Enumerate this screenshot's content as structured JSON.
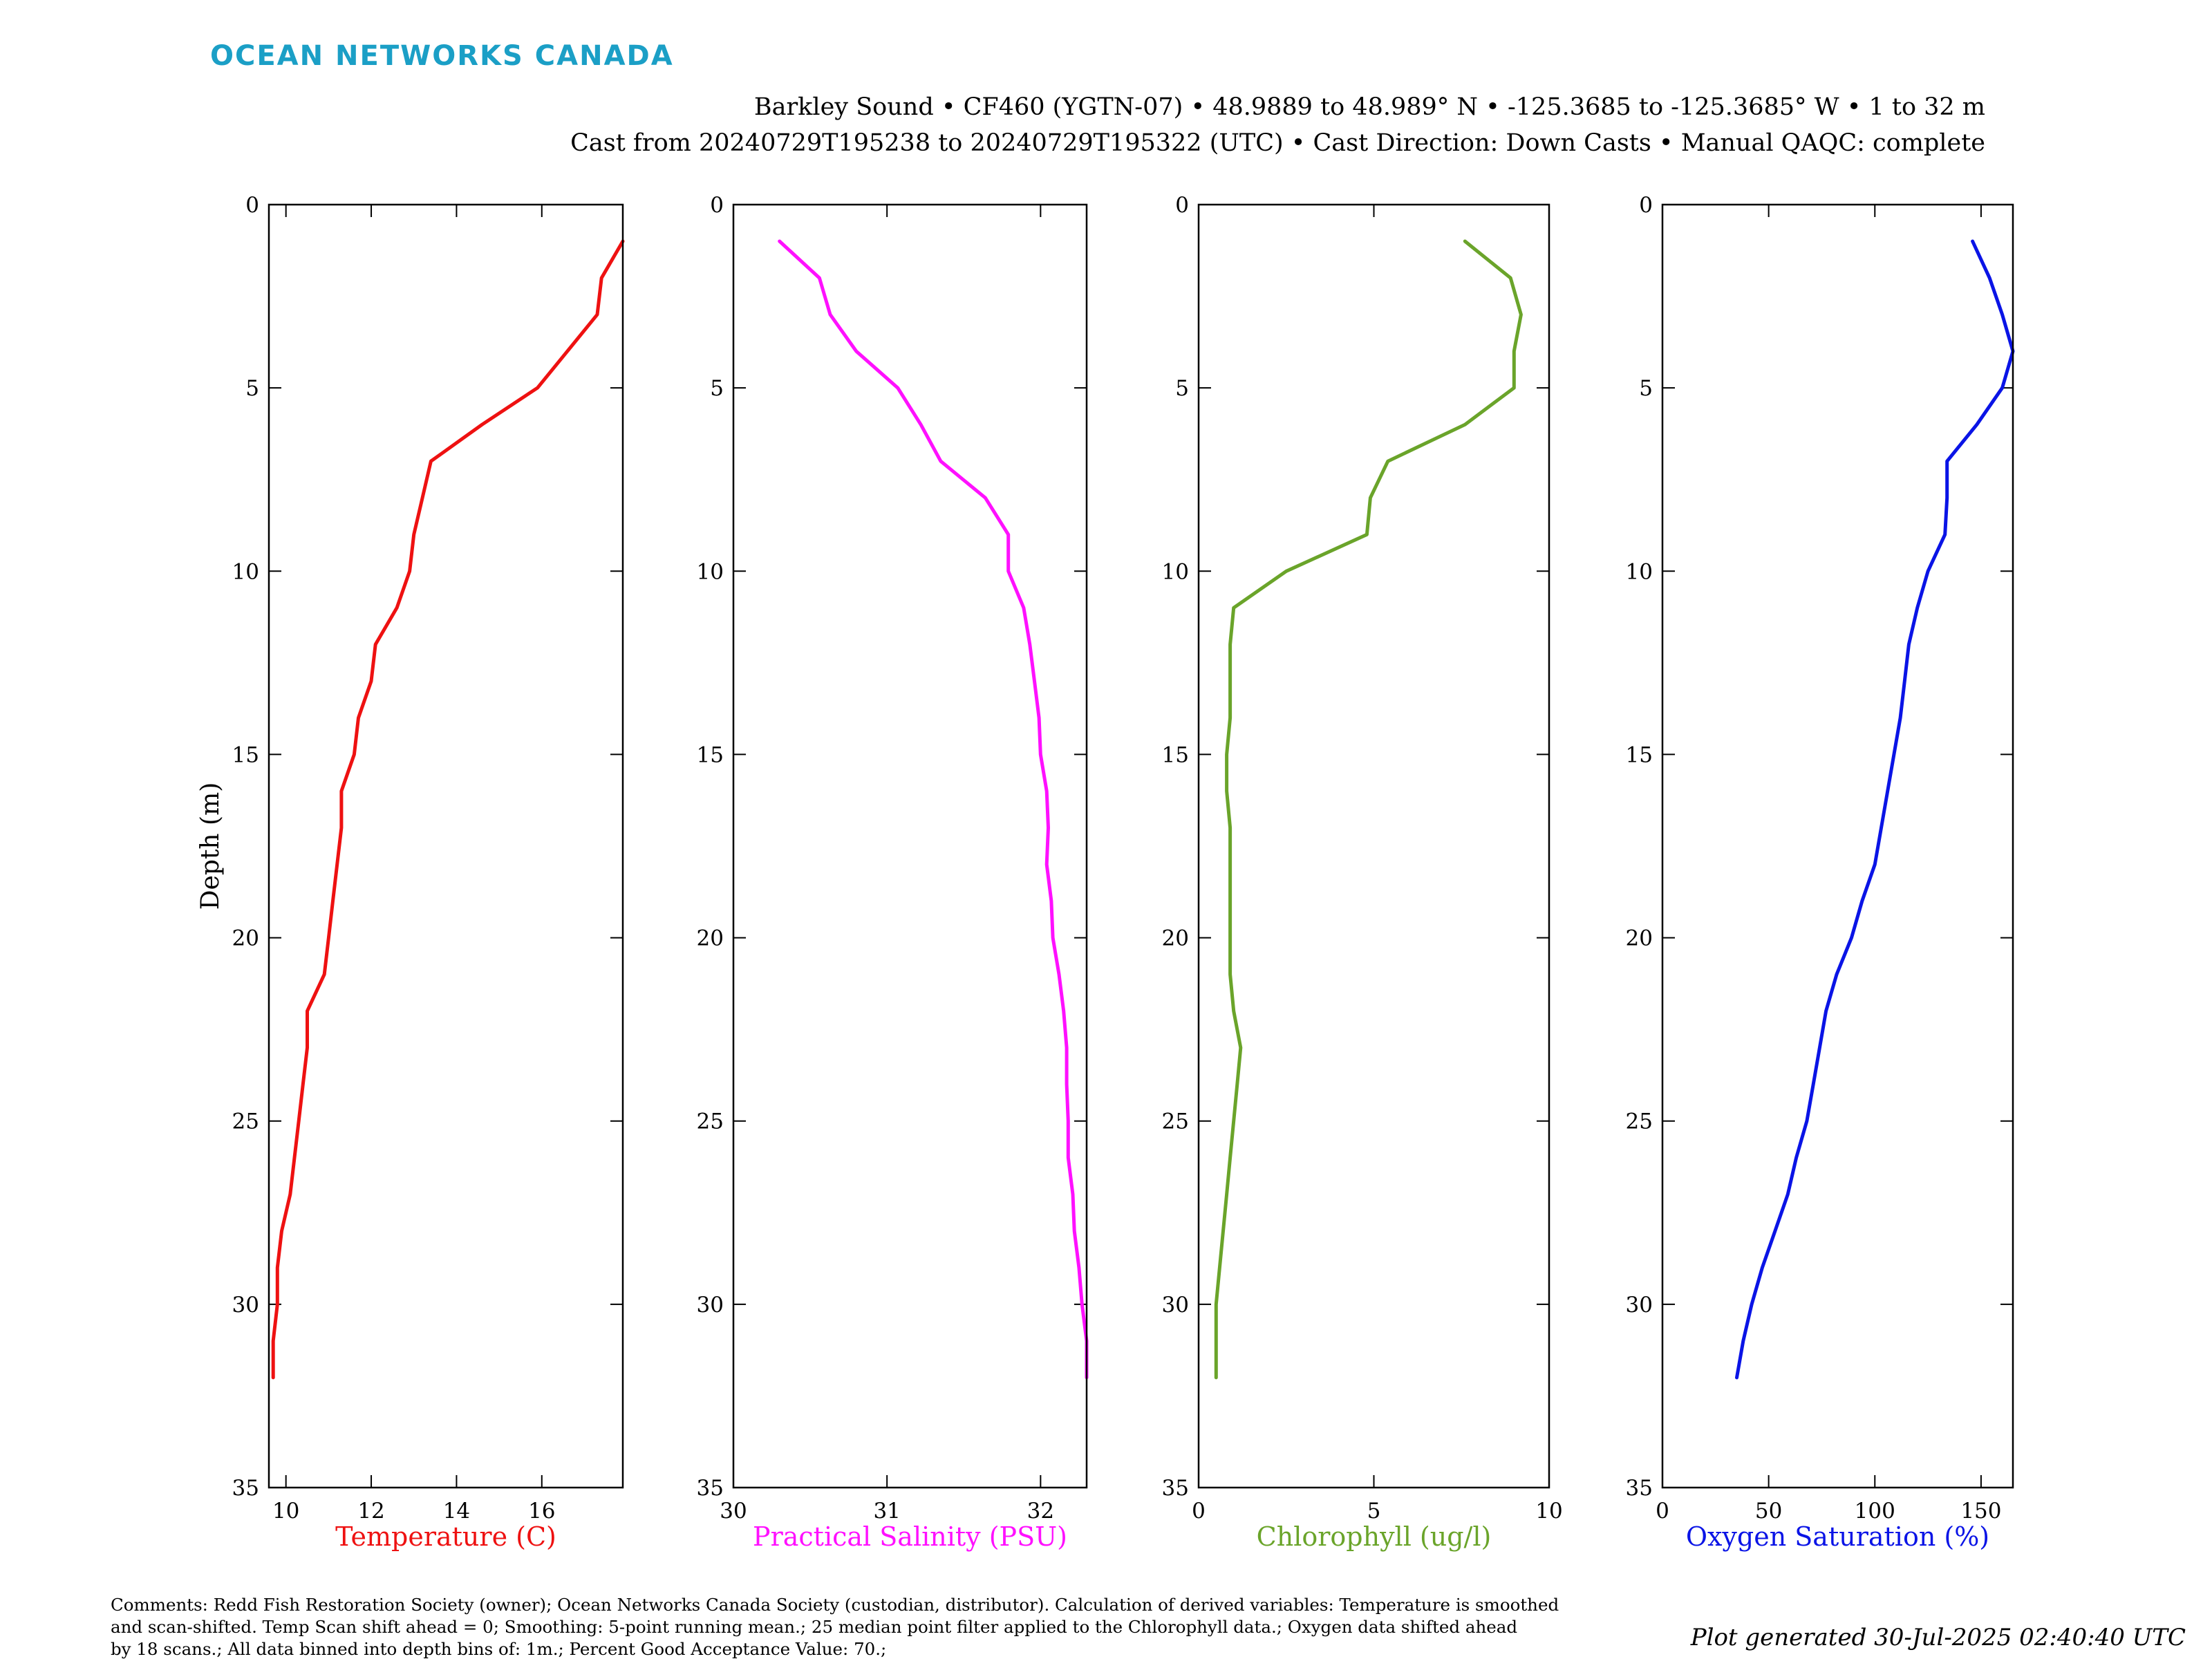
{
  "header": {
    "brand": "OCEAN NETWORKS CANADA",
    "brand_color": "#1b9fc6",
    "line1": "Barkley Sound • CF460 (YGTN-07) • 48.9889 to 48.989° N • -125.3685 to -125.3685° W • 1 to 32 m",
    "line2": "Cast from 20240729T195238 to 20240729T195322 (UTC) • Cast Direction: Down Casts • Manual QAQC: complete"
  },
  "footer": {
    "comments_line1": "Comments: Redd Fish Restoration Society (owner); Ocean Networks Canada Society (custodian, distributor). Calculation of derived variables: Temperature is smoothed",
    "comments_line2": "and scan-shifted. Temp Scan shift ahead = 0; Smoothing: 5-point running mean.; 25 median point filter applied to the Chlorophyll data.; Oxygen data shifted ahead",
    "comments_line3": "by 18 scans.; All data binned into depth bins of: 1m.; Percent Good Acceptance Value: 70.;",
    "generated": "Plot generated 30-Jul-2025 02:40:40 UTC"
  },
  "chart_data": [
    {
      "type": "line",
      "xlabel": "Temperature (C)",
      "ylabel": "Depth (m)",
      "color": "#ee1111",
      "xlim": [
        9.6,
        17.9
      ],
      "ylim": [
        0,
        35
      ],
      "xticks": [
        10,
        12,
        14,
        16
      ],
      "yticks": [
        0,
        5,
        10,
        15,
        20,
        25,
        30,
        35
      ],
      "x": [
        17.9,
        17.4,
        17.3,
        16.6,
        15.9,
        14.6,
        13.4,
        13.2,
        13.0,
        12.9,
        12.6,
        12.1,
        12.0,
        11.7,
        11.6,
        11.3,
        11.3,
        11.2,
        11.1,
        11.0,
        10.9,
        10.5,
        10.5,
        10.4,
        10.3,
        10.2,
        10.1,
        9.9,
        9.8,
        9.8,
        9.7,
        9.7
      ],
      "y": [
        1,
        2,
        3,
        4,
        5,
        6,
        7,
        8,
        9,
        10,
        11,
        12,
        13,
        14,
        15,
        16,
        17,
        18,
        19,
        20,
        21,
        22,
        23,
        24,
        25,
        26,
        27,
        28,
        29,
        30,
        31,
        32
      ]
    },
    {
      "type": "line",
      "xlabel": "Practical Salinity (PSU)",
      "ylabel": "",
      "color": "#ff10ff",
      "xlim": [
        30,
        32.3
      ],
      "ylim": [
        0,
        35
      ],
      "xticks": [
        30,
        31,
        32
      ],
      "yticks": [
        0,
        5,
        10,
        15,
        20,
        25,
        30,
        35
      ],
      "x": [
        30.3,
        30.56,
        30.63,
        30.8,
        31.07,
        31.22,
        31.35,
        31.64,
        31.79,
        31.79,
        31.89,
        31.93,
        31.96,
        31.99,
        32.0,
        32.04,
        32.05,
        32.04,
        32.07,
        32.08,
        32.12,
        32.15,
        32.17,
        32.17,
        32.18,
        32.18,
        32.21,
        32.22,
        32.25,
        32.27,
        32.3,
        32.3
      ],
      "y": [
        1,
        2,
        3,
        4,
        5,
        6,
        7,
        8,
        9,
        10,
        11,
        12,
        13,
        14,
        15,
        16,
        17,
        18,
        19,
        20,
        21,
        22,
        23,
        24,
        25,
        26,
        27,
        28,
        29,
        30,
        31,
        32
      ]
    },
    {
      "type": "line",
      "xlabel": "Chlorophyll (ug/l)",
      "ylabel": "",
      "color": "#6aa42a",
      "xlim": [
        0,
        10
      ],
      "ylim": [
        0,
        35
      ],
      "xticks": [
        0,
        5,
        10
      ],
      "yticks": [
        0,
        5,
        10,
        15,
        20,
        25,
        30,
        35
      ],
      "x": [
        7.6,
        8.9,
        9.2,
        9.0,
        9.0,
        7.6,
        5.4,
        4.9,
        4.8,
        2.5,
        1.0,
        0.9,
        0.9,
        0.9,
        0.8,
        0.8,
        0.9,
        0.9,
        0.9,
        0.9,
        0.9,
        1.0,
        1.2,
        1.1,
        1.0,
        0.9,
        0.8,
        0.7,
        0.6,
        0.5,
        0.5,
        0.5
      ],
      "y": [
        1,
        2,
        3,
        4,
        5,
        6,
        7,
        8,
        9,
        10,
        11,
        12,
        13,
        14,
        15,
        16,
        17,
        18,
        19,
        20,
        21,
        22,
        23,
        24,
        25,
        26,
        27,
        28,
        29,
        30,
        31,
        32
      ]
    },
    {
      "type": "line",
      "xlabel": "Oxygen Saturation (%)",
      "ylabel": "",
      "color": "#0a14e6",
      "xlim": [
        0,
        165
      ],
      "ylim": [
        0,
        35
      ],
      "xticks": [
        0,
        50,
        100,
        150
      ],
      "yticks": [
        0,
        5,
        10,
        15,
        20,
        25,
        30,
        35
      ],
      "x": [
        146,
        154,
        160,
        165,
        160,
        148,
        134,
        134,
        133,
        125,
        120,
        116,
        114,
        112,
        109,
        106,
        103,
        100,
        94,
        89,
        82,
        77,
        74,
        71,
        68,
        63,
        59,
        53,
        47,
        42,
        38,
        35
      ],
      "y": [
        1,
        2,
        3,
        4,
        5,
        6,
        7,
        8,
        9,
        10,
        11,
        12,
        13,
        14,
        15,
        16,
        17,
        18,
        19,
        20,
        21,
        22,
        23,
        24,
        25,
        26,
        27,
        28,
        29,
        30,
        31,
        32
      ]
    }
  ]
}
